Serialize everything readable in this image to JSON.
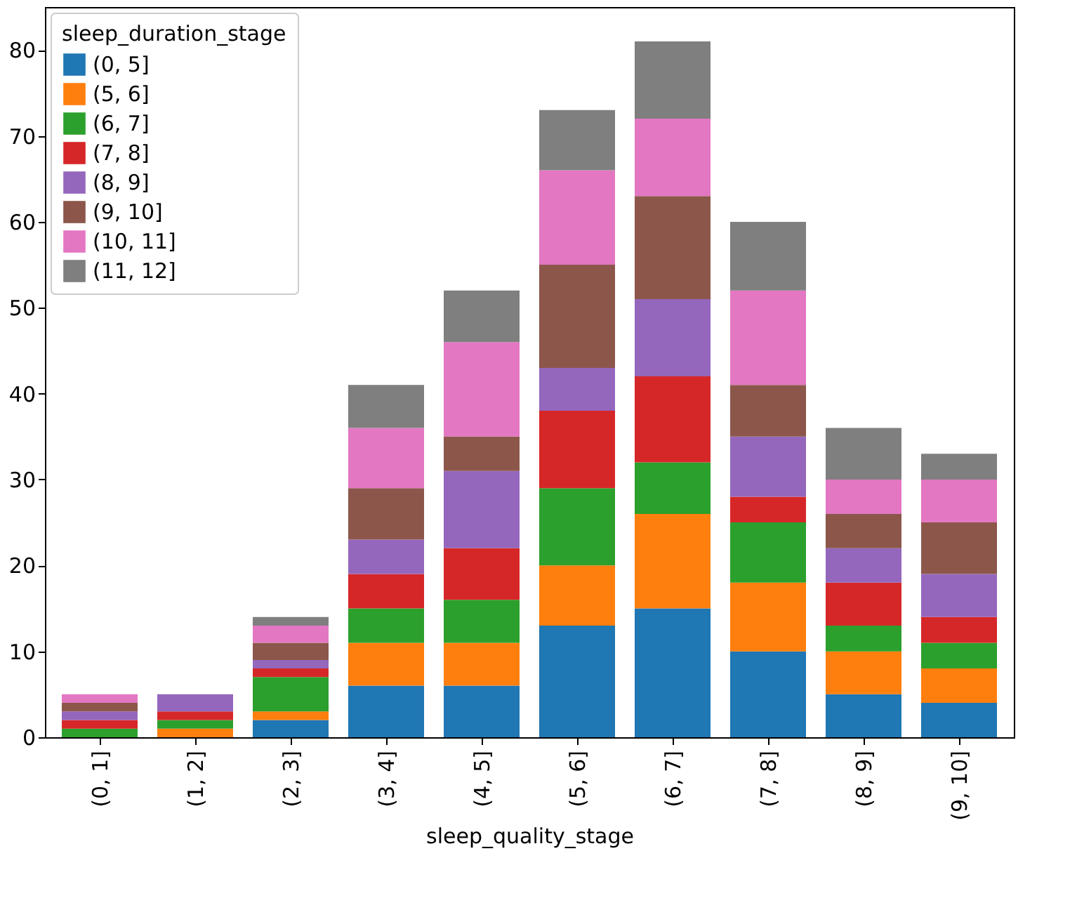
{
  "chart_data": {
    "type": "bar",
    "stacked": true,
    "xlabel": "sleep_quality_stage",
    "legend_title": "sleep_duration_stage",
    "legend": "top left",
    "grid": false,
    "categories": [
      "(0, 1]",
      "(1, 2]",
      "(2, 3]",
      "(3, 4]",
      "(4, 5]",
      "(5, 6]",
      "(6, 7]",
      "(7, 8]",
      "(8, 9]",
      "(9, 10]"
    ],
    "ylim": [
      0,
      85
    ],
    "yticks": [
      0,
      10,
      20,
      30,
      40,
      50,
      60,
      70,
      80
    ],
    "series": [
      {
        "name": "(0, 5]",
        "color": "#1f77b4",
        "values": [
          0,
          0,
          2,
          6,
          6,
          13,
          15,
          10,
          5,
          4
        ]
      },
      {
        "name": "(5, 6]",
        "color": "#ff7f0e",
        "values": [
          0,
          1,
          1,
          5,
          5,
          7,
          11,
          8,
          5,
          4
        ]
      },
      {
        "name": "(6, 7]",
        "color": "#2ca02c",
        "values": [
          1,
          1,
          4,
          4,
          5,
          9,
          6,
          7,
          3,
          3
        ]
      },
      {
        "name": "(7, 8]",
        "color": "#d62728",
        "values": [
          1,
          1,
          1,
          4,
          6,
          9,
          10,
          3,
          5,
          3
        ]
      },
      {
        "name": "(8, 9]",
        "color": "#9467bd",
        "values": [
          1,
          2,
          1,
          4,
          9,
          5,
          9,
          7,
          4,
          5
        ]
      },
      {
        "name": "(9, 10]",
        "color": "#8c564b",
        "values": [
          1,
          0,
          2,
          6,
          4,
          12,
          12,
          6,
          4,
          6
        ]
      },
      {
        "name": "(10, 11]",
        "color": "#e377c2",
        "values": [
          1,
          0,
          2,
          7,
          11,
          11,
          9,
          11,
          4,
          5
        ]
      },
      {
        "name": "(11, 12]",
        "color": "#7f7f7f",
        "values": [
          0,
          0,
          1,
          5,
          6,
          7,
          9,
          8,
          6,
          3
        ]
      }
    ]
  }
}
